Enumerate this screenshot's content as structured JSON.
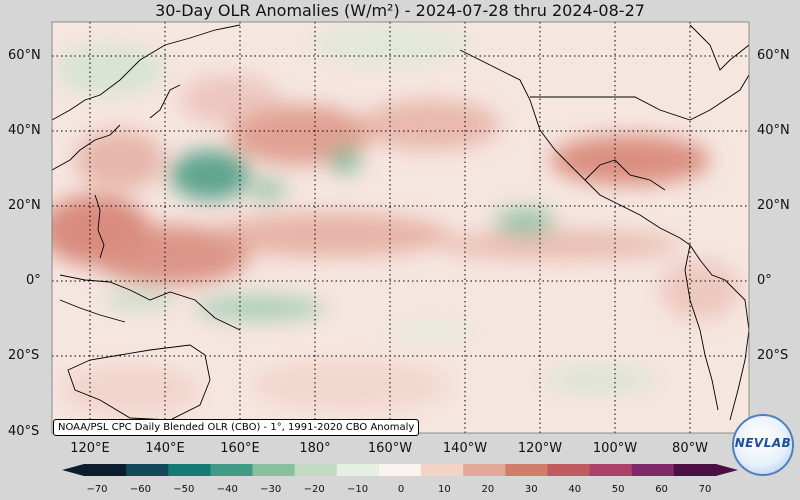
{
  "title": "30-Day OLR Anomalies (W/m²) - 2024-07-28 thru 2024-08-27",
  "credit": "NOAA/PSL CPC Daily Blended OLR (CBO) - 1°, 1991-2020 CBO Anomaly",
  "logo_text": "NEVLAB",
  "lat_labels": [
    "60°N",
    "40°N",
    "20°N",
    "0°",
    "20°S",
    "40°S"
  ],
  "lon_labels": [
    "120°E",
    "140°E",
    "160°E",
    "180°",
    "160°W",
    "140°W",
    "120°W",
    "100°W",
    "80°W"
  ],
  "colorbar": {
    "ticks": [
      "−70",
      "−60",
      "−50",
      "−40",
      "−30",
      "−20",
      "−10",
      "0",
      "10",
      "20",
      "30",
      "40",
      "50",
      "60",
      "70"
    ],
    "range": [
      -70,
      70
    ],
    "colors": [
      "#0c1e2e",
      "#12495a",
      "#137a76",
      "#3f9a86",
      "#87bf9f",
      "#c2dcc4",
      "#e6efe4",
      "#fbf3ef",
      "#f3d3c6",
      "#e3a898",
      "#d27d6c",
      "#c05a5e",
      "#a9416b",
      "#80286a",
      "#4b0f44"
    ]
  },
  "anomaly_field": {
    "colors": {
      "positive": "#d27d6c",
      "negative": "#3f9a86",
      "background": "#f6e6e0"
    },
    "features": [
      {
        "sign": "positive",
        "region": "western Pacific 0–20°N"
      },
      {
        "sign": "positive",
        "region": "central North Pacific 30–40°N"
      },
      {
        "sign": "positive",
        "region": "southern United States / Mexico"
      },
      {
        "sign": "negative",
        "region": "subtropical western Pacific 25–30°N"
      },
      {
        "sign": "negative",
        "region": "eastern Pacific near 15°N"
      },
      {
        "sign": "negative",
        "region": "equatorial western Pacific 5°S"
      }
    ]
  }
}
